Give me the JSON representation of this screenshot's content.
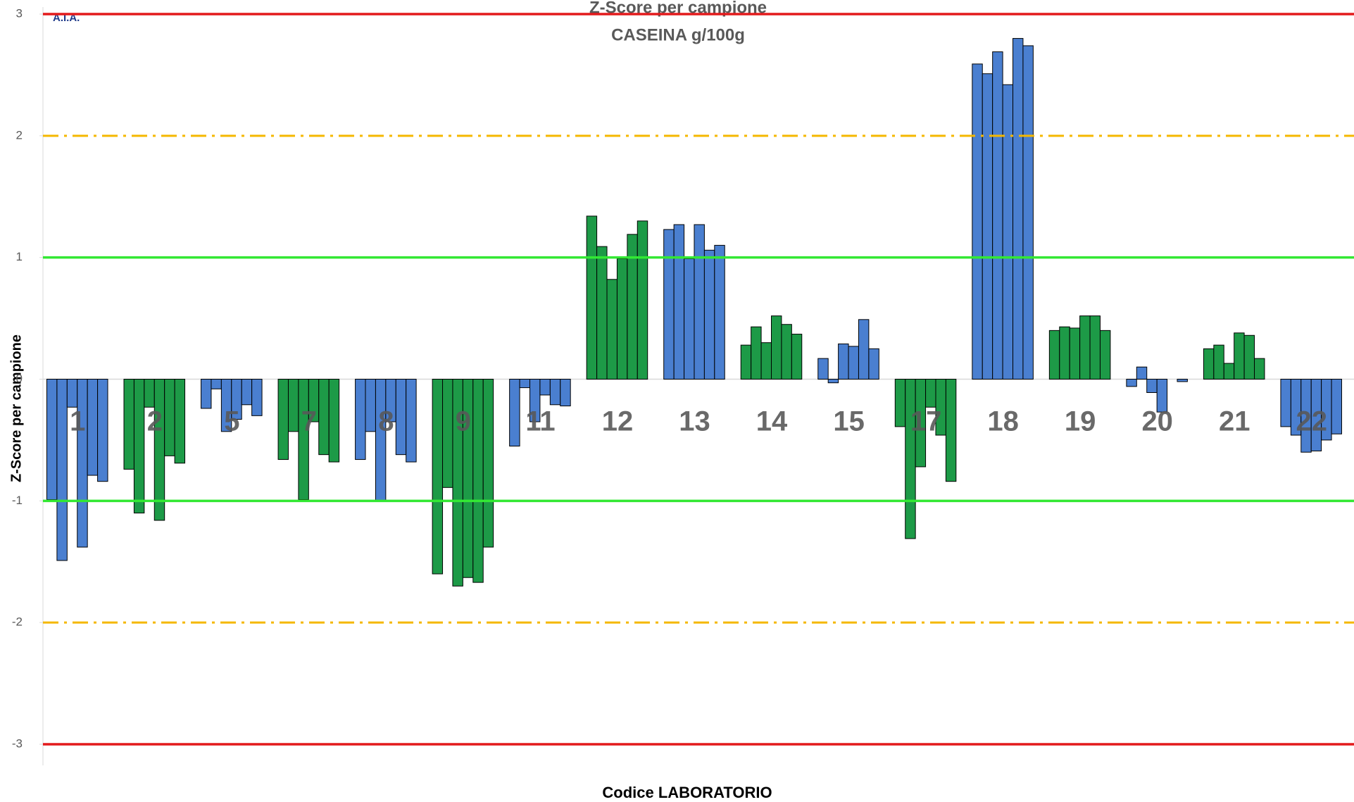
{
  "chart_data": {
    "type": "grouped-bar",
    "logo": "A.I.A.",
    "title": "Z-Score per campione",
    "subtitle": "CASEINA g/100g",
    "y_label": "Z-Score per campione",
    "x_label": "Codice LABORATORIO",
    "categories": [
      "1",
      "2",
      "5",
      "7",
      "8",
      "9",
      "11",
      "12",
      "13",
      "14",
      "15",
      "17",
      "18",
      "19",
      "20",
      "21",
      "22"
    ],
    "colors": [
      "#4a7fd0",
      "#1d9a47",
      "#4a7fd0",
      "#1d9a47",
      "#4a7fd0",
      "#1d9a47",
      "#4a7fd0",
      "#1d9a47",
      "#4a7fd0",
      "#1d9a47",
      "#4a7fd0",
      "#1d9a47",
      "#4a7fd0",
      "#1d9a47",
      "#4a7fd0",
      "#1d9a47",
      "#4a7fd0"
    ],
    "values": [
      [
        -0.99,
        -1.49,
        -0.23,
        -1.38,
        -0.79,
        -0.84
      ],
      [
        -0.74,
        -1.1,
        -0.23,
        -1.16,
        -0.63,
        -0.69
      ],
      [
        -0.24,
        -0.08,
        -0.43,
        -0.33,
        -0.21,
        -0.3
      ],
      [
        -0.66,
        -0.43,
        -0.99,
        -0.35,
        -0.62,
        -0.68
      ],
      [
        -0.66,
        -0.43,
        -1.0,
        -0.35,
        -0.62,
        -0.68
      ],
      [
        -1.6,
        -0.89,
        -1.7,
        -1.63,
        -1.67,
        -1.38
      ],
      [
        -0.55,
        -0.07,
        -0.35,
        -0.13,
        -0.21,
        -0.22
      ],
      [
        1.34,
        1.09,
        0.82,
        0.99,
        1.19,
        1.3
      ],
      [
        1.23,
        1.27,
        0.99,
        1.27,
        1.06,
        1.1
      ],
      [
        0.28,
        0.43,
        0.3,
        0.52,
        0.45,
        0.37
      ],
      [
        0.17,
        -0.03,
        0.29,
        0.27,
        0.49,
        0.25
      ],
      [
        -0.39,
        -1.31,
        -0.72,
        -0.23,
        -0.46,
        -0.84
      ],
      [
        2.59,
        2.51,
        2.69,
        2.42,
        2.8,
        2.74
      ],
      [
        0.4,
        0.43,
        0.42,
        0.52,
        0.52,
        0.4
      ],
      [
        -0.06,
        0.1,
        -0.11,
        -0.27,
        0,
        -0.02
      ],
      [
        0.25,
        0.28,
        0.13,
        0.38,
        0.36,
        0.17
      ],
      [
        -0.39,
        -0.46,
        -0.6,
        -0.59,
        -0.5,
        -0.45
      ]
    ],
    "ylim": [
      -3,
      3
    ],
    "yticks": [
      -3,
      -2,
      -1,
      0,
      1,
      2,
      3
    ],
    "reference_lines": [
      {
        "value": 3,
        "color": "#e31a1c",
        "style": "solid"
      },
      {
        "value": 2,
        "color": "#f5b800",
        "style": "dashdot"
      },
      {
        "value": 1,
        "color": "#33e833",
        "style": "solid"
      },
      {
        "value": -1,
        "color": "#33e833",
        "style": "solid"
      },
      {
        "value": -2,
        "color": "#f5b800",
        "style": "dashdot"
      },
      {
        "value": -3,
        "color": "#e31a1c",
        "style": "solid"
      }
    ]
  }
}
